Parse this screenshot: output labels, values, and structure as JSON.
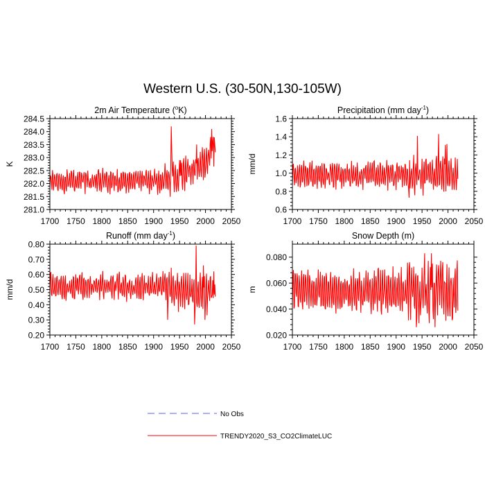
{
  "figure": {
    "title": "Western U.S. (30-50N,130-105W)"
  },
  "legend": {
    "items": [
      {
        "label": "No Obs",
        "color": "#5b5bff",
        "style": "dashed"
      },
      {
        "label": "TRENDY2020_S3_CO2ClimateLUC",
        "color": "#ff0000",
        "style": "solid"
      }
    ]
  },
  "chart_data": [
    {
      "type": "line",
      "title": "2m Air Temperature (°K)",
      "title_parts": [
        "2m Air Temperature (",
        "o",
        "K)"
      ],
      "ylabel": "K",
      "xlim": [
        1700,
        2050
      ],
      "ylim": [
        281.0,
        284.5
      ],
      "xticks": [
        1700,
        1750,
        1800,
        1850,
        1900,
        1950,
        2000,
        2050
      ],
      "yticks": [
        281.0,
        281.5,
        282.0,
        282.5,
        283.0,
        283.5,
        284.0,
        284.5
      ],
      "ytick_labels": [
        "281.0",
        "281.5",
        "282.0",
        "282.5",
        "283.0",
        "283.5",
        "284.0",
        "284.5"
      ],
      "x_range": [
        1700,
        2019
      ],
      "series": [
        {
          "name": "TRENDY2020_S3_CO2ClimateLUC",
          "color": "#ff0000",
          "base": 282.1,
          "amp": 0.38,
          "noise": 0.18,
          "events": [
            [
              1934,
              284.2
            ],
            [
              1935,
              283.3
            ],
            [
              1936,
              282.5
            ],
            [
              1952,
              282.9
            ],
            [
              1983,
              283.5
            ],
            [
              2012,
              284.1
            ],
            [
              2015,
              283.8
            ],
            [
              2018,
              283.5
            ]
          ],
          "trend": [
            [
              1700,
              282.1
            ],
            [
              1925,
              282.1
            ],
            [
              1960,
              282.4
            ],
            [
              1990,
              282.6
            ],
            [
              2019,
              283.3
            ]
          ]
        }
      ]
    },
    {
      "type": "line",
      "title": "Precipitation (mm day⁻¹)",
      "title_parts": [
        "Precipitation (mm day",
        "-1",
        ")"
      ],
      "ylabel": "mm/d",
      "xlim": [
        1700,
        2050
      ],
      "ylim": [
        0.6,
        1.6
      ],
      "xticks": [
        1700,
        1750,
        1800,
        1850,
        1900,
        1950,
        2000,
        2050
      ],
      "yticks": [
        0.6,
        0.8,
        1.0,
        1.2,
        1.4,
        1.6
      ],
      "ytick_labels": [
        "0.6",
        "0.8",
        "1.0",
        "1.2",
        "1.4",
        "1.6"
      ],
      "x_range": [
        1700,
        2019
      ],
      "series": [
        {
          "name": "TRENDY2020_S3_CO2ClimateLUC",
          "color": "#ff0000",
          "base": 0.98,
          "amp": 0.12,
          "noise": 0.06,
          "events": [
            [
              1941,
              1.41
            ],
            [
              1942,
              1.0
            ],
            [
              1982,
              1.43
            ],
            [
              1995,
              1.31
            ],
            [
              1998,
              1.32
            ],
            [
              1925,
              0.73
            ]
          ],
          "trend": [
            [
              1700,
              0.98
            ],
            [
              2019,
              0.98
            ]
          ]
        }
      ]
    },
    {
      "type": "line",
      "title": "Runoff (mm day⁻¹)",
      "title_parts": [
        "Runoff (mm day",
        "-1",
        ")"
      ],
      "ylabel": "mm/d",
      "xlim": [
        1700,
        2050
      ],
      "ylim": [
        0.2,
        0.8
      ],
      "xticks": [
        1700,
        1750,
        1800,
        1850,
        1900,
        1950,
        2000,
        2050
      ],
      "yticks": [
        0.2,
        0.3,
        0.4,
        0.5,
        0.6,
        0.7,
        0.8
      ],
      "ytick_labels": [
        "0.20",
        "0.30",
        "0.40",
        "0.50",
        "0.60",
        "0.70",
        "0.80"
      ],
      "x_range": [
        1700,
        2019
      ],
      "series": [
        {
          "name": "TRENDY2020_S3_CO2ClimateLUC",
          "color": "#ff0000",
          "base": 0.52,
          "amp": 0.07,
          "noise": 0.035,
          "events": [
            [
              1927,
              0.3
            ],
            [
              1982,
              0.79
            ],
            [
              1979,
              0.27
            ],
            [
              1996,
              0.66
            ],
            [
              1999,
              0.3
            ],
            [
              2003,
              0.33
            ],
            [
              2016,
              0.62
            ]
          ],
          "trend": [
            [
              1700,
              0.52
            ],
            [
              1920,
              0.52
            ],
            [
              1960,
              0.48
            ],
            [
              2019,
              0.47
            ]
          ]
        }
      ]
    },
    {
      "type": "line",
      "title": "Snow Depth (m)",
      "title_parts": [
        "Snow Depth (m)",
        "",
        ""
      ],
      "ylabel": "m",
      "xlim": [
        1700,
        2050
      ],
      "ylim": [
        0.02,
        0.09
      ],
      "xticks": [
        1700,
        1750,
        1800,
        1850,
        1900,
        1950,
        2000,
        2050
      ],
      "yticks": [
        0.02,
        0.04,
        0.06,
        0.08
      ],
      "ytick_labels": [
        "0.020",
        "0.040",
        "0.060",
        "0.080"
      ],
      "x_range": [
        1700,
        2019
      ],
      "series": [
        {
          "name": "TRENDY2020_S3_CO2ClimateLUC",
          "color": "#ff0000",
          "base": 0.055,
          "amp": 0.013,
          "noise": 0.006,
          "events": [
            [
              1955,
              0.083
            ],
            [
              1968,
              0.083
            ],
            [
              1975,
              0.026
            ],
            [
              1939,
              0.026
            ],
            [
              2009,
              0.033
            ]
          ],
          "trend": [
            [
              1700,
              0.054
            ],
            [
              2019,
              0.054
            ]
          ]
        }
      ]
    }
  ]
}
